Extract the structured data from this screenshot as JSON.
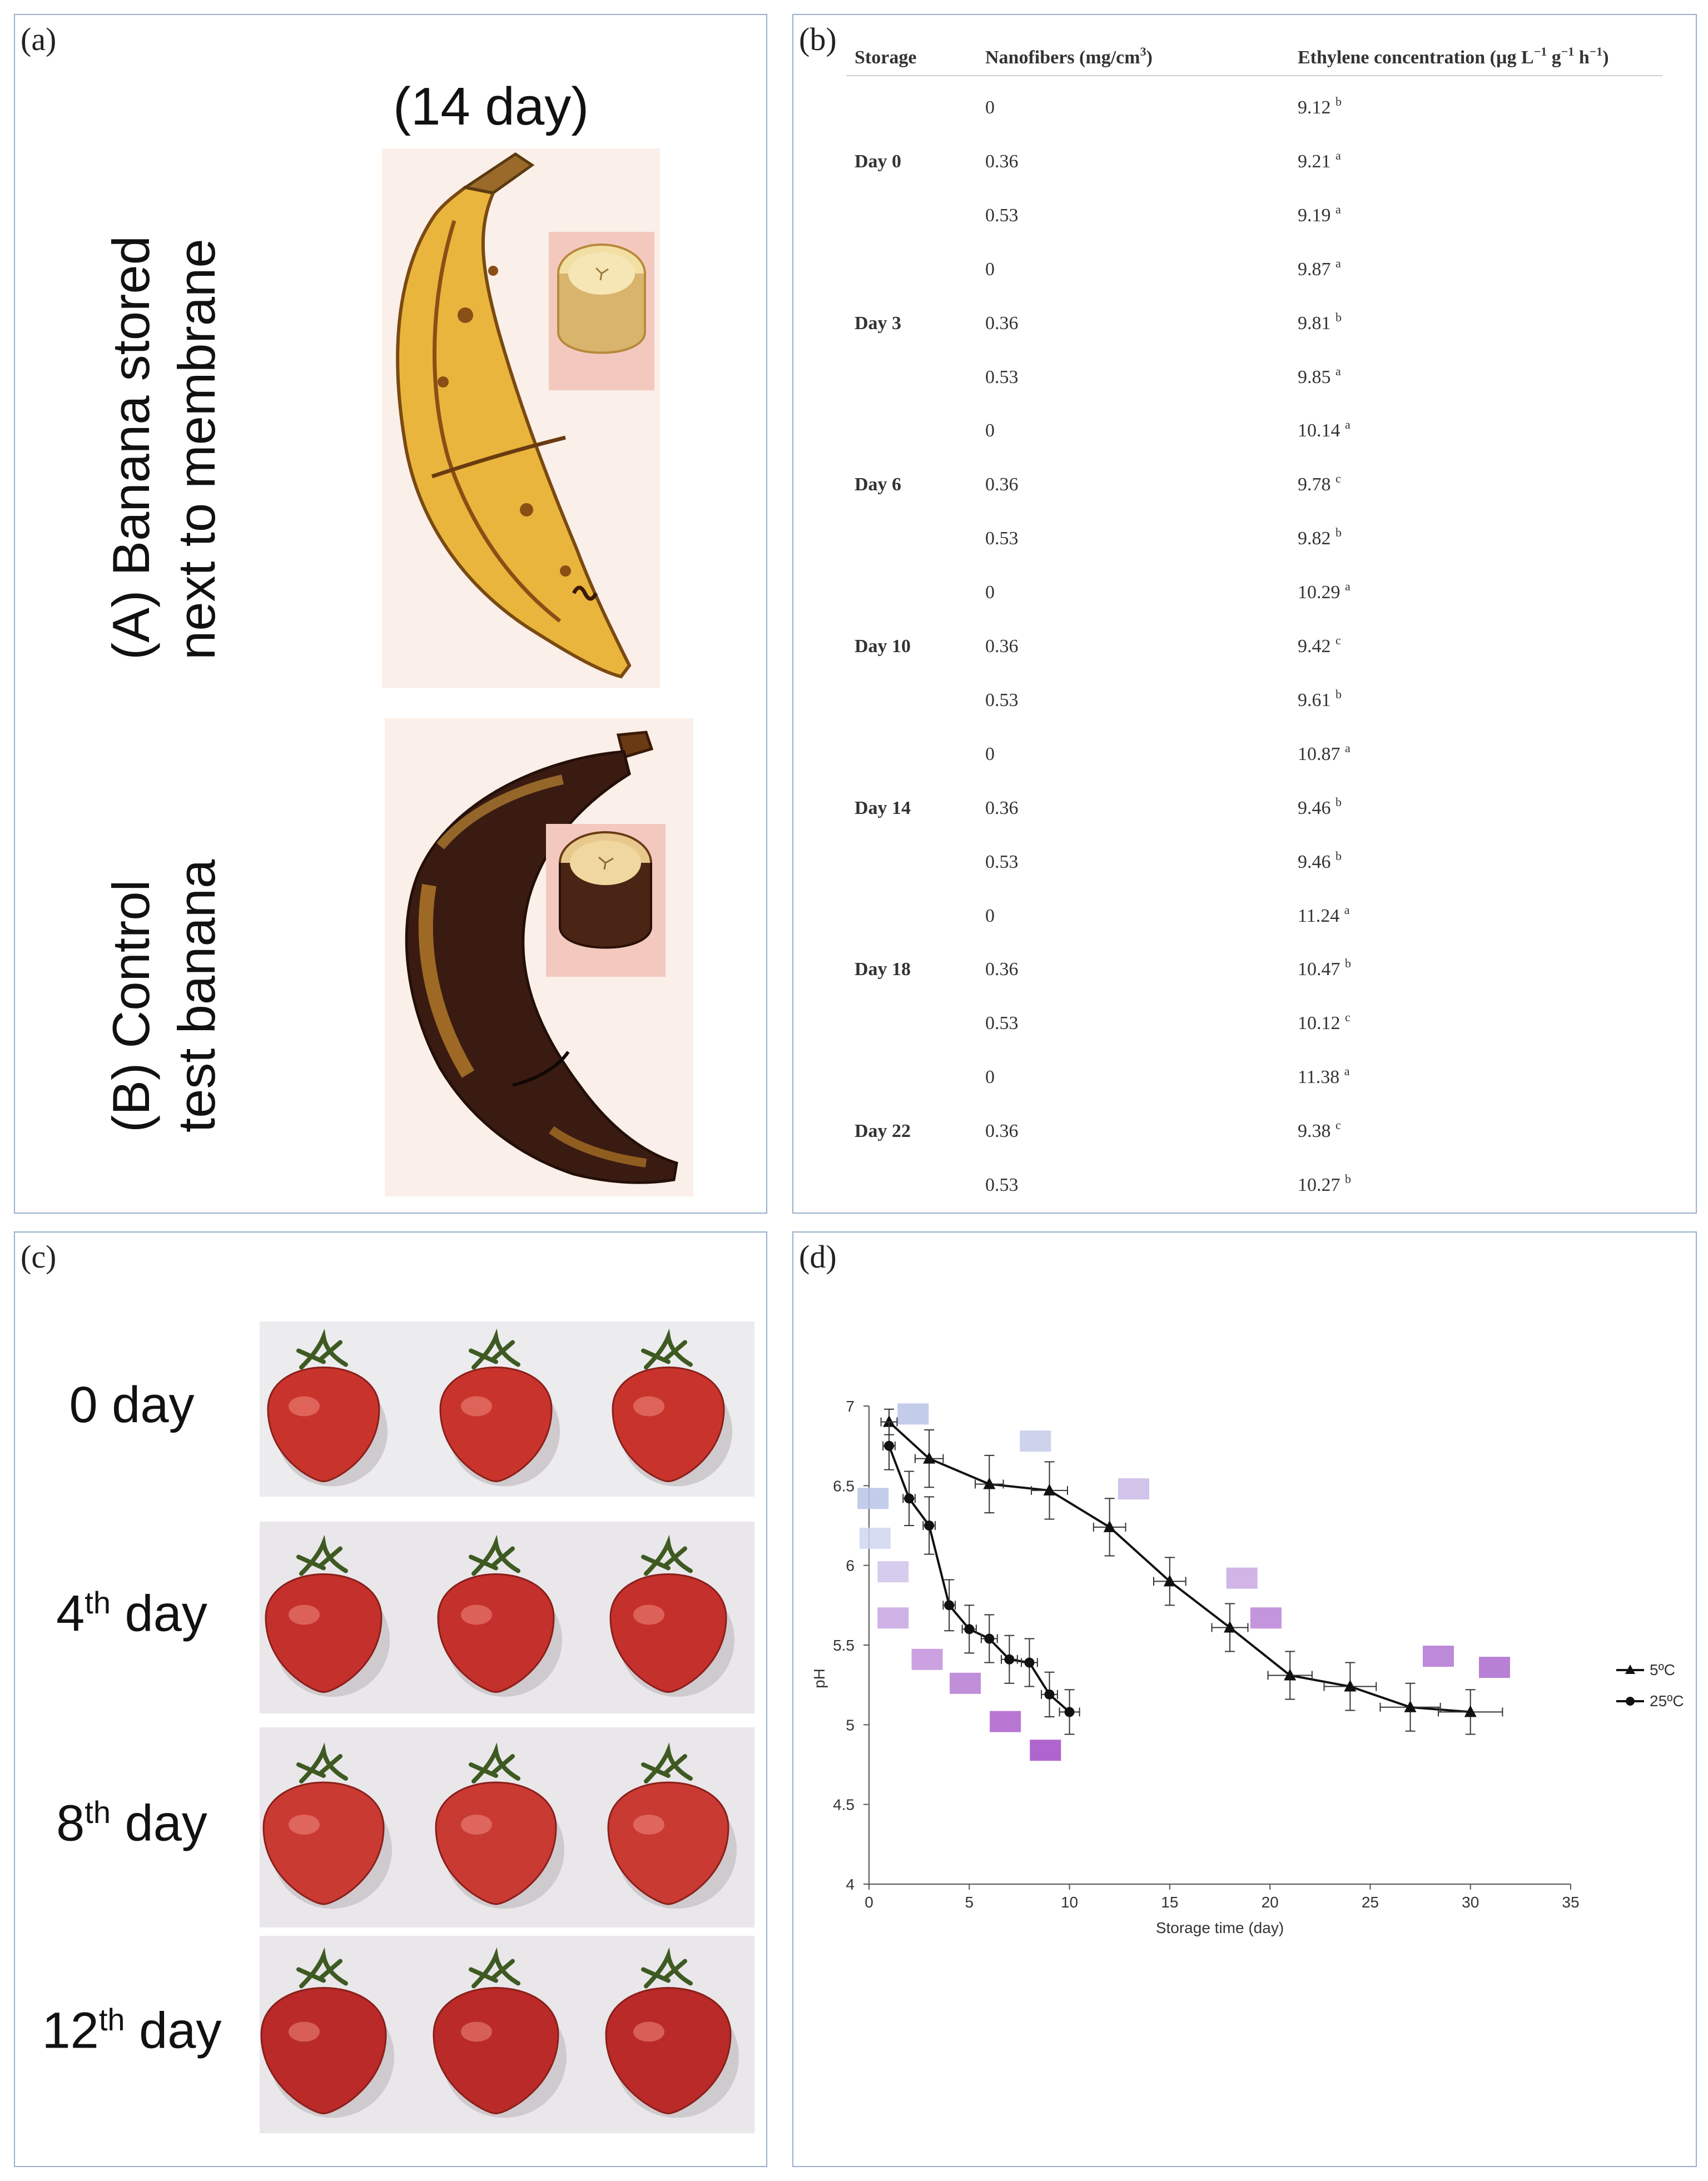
{
  "panels": {
    "a": {
      "label": "(a)",
      "title": "(14 day)",
      "banana_a_line1": "(A) Banana stored",
      "banana_a_line2": "next to membrane",
      "banana_b_line1": "(B) Control",
      "banana_b_line2": "test  banana"
    },
    "b": {
      "label": "(b)",
      "headers": {
        "storage": "Storage",
        "nanofibers_base": "Nanofibers (mg/cm",
        "nanofibers_sup": "3",
        "nanofibers_end": ")",
        "ethylene_base": "Ethylene concentration (µg L",
        "ethylene_sup1": "−1",
        "ethylene_mid1": " g",
        "ethylene_sup2": "−1",
        "ethylene_mid2": " h",
        "ethylene_sup3": "−1",
        "ethylene_end": ")"
      },
      "groups": [
        {
          "day": "Day 0",
          "rows": [
            {
              "nano": "0",
              "val": "9.12",
              "sig": "b"
            },
            {
              "nano": "0.36",
              "val": "9.21",
              "sig": "a"
            },
            {
              "nano": "0.53",
              "val": "9.19",
              "sig": "a"
            }
          ]
        },
        {
          "day": "Day 3",
          "rows": [
            {
              "nano": "0",
              "val": "9.87",
              "sig": "a"
            },
            {
              "nano": "0.36",
              "val": "9.81",
              "sig": "b"
            },
            {
              "nano": "0.53",
              "val": "9.85",
              "sig": "a"
            }
          ]
        },
        {
          "day": "Day 6",
          "rows": [
            {
              "nano": "0",
              "val": "10.14",
              "sig": "a"
            },
            {
              "nano": "0.36",
              "val": "9.78",
              "sig": "c"
            },
            {
              "nano": "0.53",
              "val": "9.82",
              "sig": "b"
            }
          ]
        },
        {
          "day": "Day 10",
          "rows": [
            {
              "nano": "0",
              "val": "10.29",
              "sig": "a"
            },
            {
              "nano": "0.36",
              "val": "9.42",
              "sig": "c"
            },
            {
              "nano": "0.53",
              "val": "9.61",
              "sig": "b"
            }
          ]
        },
        {
          "day": "Day 14",
          "rows": [
            {
              "nano": "0",
              "val": "10.87",
              "sig": "a"
            },
            {
              "nano": "0.36",
              "val": "9.46",
              "sig": "b"
            },
            {
              "nano": "0.53",
              "val": "9.46",
              "sig": "b"
            }
          ]
        },
        {
          "day": "Day 18",
          "rows": [
            {
              "nano": "0",
              "val": "11.24",
              "sig": "a"
            },
            {
              "nano": "0.36",
              "val": "10.47",
              "sig": "b"
            },
            {
              "nano": "0.53",
              "val": "10.12",
              "sig": "c"
            }
          ]
        },
        {
          "day": "Day 22",
          "rows": [
            {
              "nano": "0",
              "val": "11.38",
              "sig": "a"
            },
            {
              "nano": "0.36",
              "val": "9.38",
              "sig": "c"
            },
            {
              "nano": "0.53",
              "val": "10.27",
              "sig": "b"
            }
          ]
        }
      ]
    },
    "c": {
      "label": "(c)",
      "days": [
        {
          "num": "0",
          "sup": "",
          "word": " day"
        },
        {
          "num": "4",
          "sup": "th",
          "word": " day"
        },
        {
          "num": "8",
          "sup": "th",
          "word": " day"
        },
        {
          "num": "12",
          "sup": "th",
          "word": " day"
        }
      ]
    },
    "d": {
      "label": "(d)"
    }
  },
  "colors": {
    "tomato": "#c8342c",
    "banana_a": "#e7b23c",
    "banana_b": "#3a1b12",
    "border": "#9aaecb"
  },
  "chart_data": {
    "type": "line",
    "title": "",
    "xlabel": "Storage time (day)",
    "ylabel": "pH",
    "xlim": [
      0,
      35
    ],
    "ylim": [
      4,
      7
    ],
    "xticks": [
      0,
      5,
      10,
      15,
      20,
      25,
      30,
      35
    ],
    "yticks": [
      4,
      4.5,
      5,
      5.5,
      6,
      6.5,
      7
    ],
    "legend_position": "right",
    "series": [
      {
        "name": "5ºC",
        "marker": "triangle",
        "x": [
          1,
          3,
          6,
          9,
          12,
          15,
          18,
          21,
          24,
          27,
          30
        ],
        "values": [
          6.9,
          6.67,
          6.51,
          6.47,
          6.24,
          5.9,
          5.61,
          5.31,
          5.24,
          5.11,
          5.08
        ],
        "yerr": [
          0.08,
          0.18,
          0.18,
          0.18,
          0.18,
          0.15,
          0.15,
          0.15,
          0.15,
          0.15,
          0.14
        ],
        "xerr": [
          0.4,
          0.7,
          0.7,
          0.9,
          0.8,
          0.8,
          0.9,
          1.1,
          1.3,
          1.5,
          1.6
        ]
      },
      {
        "name": "25ºC",
        "marker": "circle",
        "x": [
          1,
          2,
          3,
          4,
          5,
          6,
          7,
          8,
          9,
          10
        ],
        "values": [
          6.75,
          6.42,
          6.25,
          5.75,
          5.6,
          5.54,
          5.41,
          5.39,
          5.19,
          5.08
        ],
        "yerr": [
          0.15,
          0.17,
          0.18,
          0.16,
          0.15,
          0.15,
          0.15,
          0.15,
          0.14,
          0.14
        ],
        "xerr": [
          0.3,
          0.3,
          0.3,
          0.3,
          0.35,
          0.4,
          0.4,
          0.4,
          0.4,
          0.5
        ]
      }
    ],
    "swatches_5C": [
      "#b8c4e6",
      "#c4cbea",
      "#c9b9e6",
      "#c8a8e2",
      "#b983d6",
      "#b275d2",
      "#ab6ace"
    ],
    "swatches_25C": [
      "#b8c4e6",
      "#cfd6f0",
      "#cfc3ea",
      "#c7a5e0",
      "#c291dc",
      "#b67ad4",
      "#ad5fcd",
      "#a24ac6"
    ]
  }
}
